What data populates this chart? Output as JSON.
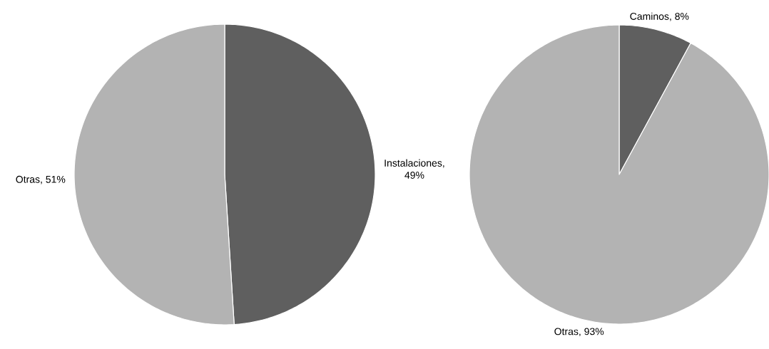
{
  "chart_data": [
    {
      "type": "pie",
      "values": [
        49,
        51
      ],
      "colors": [
        "#5f5f5f",
        "#b3b3b3"
      ],
      "value_labels": [
        "Instalaciones, 49%",
        "Otras, 51%"
      ]
    },
    {
      "type": "pie",
      "values": [
        8,
        93
      ],
      "colors": [
        "#5f5f5f",
        "#b3b3b3"
      ],
      "value_labels": [
        "Caminos, 8%",
        "Otras, 93%"
      ]
    }
  ]
}
